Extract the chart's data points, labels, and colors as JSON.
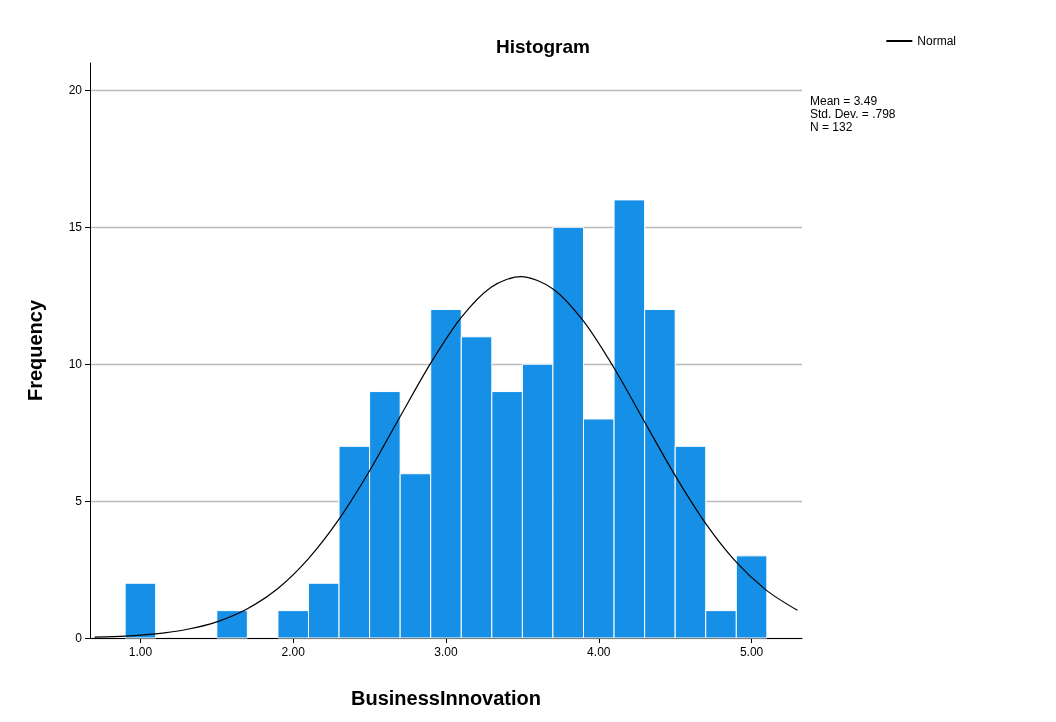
{
  "chart_data": {
    "type": "histogram",
    "title": "Histogram",
    "xlabel": "BusinessInnovation",
    "ylabel": "Frequency",
    "bins": [
      0.9,
      1.1,
      1.3,
      1.5,
      1.7,
      1.9,
      2.1,
      2.3,
      2.5,
      2.7,
      2.9,
      3.1,
      3.3,
      3.5,
      3.7,
      3.9,
      4.1,
      4.3,
      4.5,
      4.7,
      4.9,
      5.1
    ],
    "series": [
      {
        "color": "#1690e6",
        "values": [
          2,
          0,
          0,
          1,
          0,
          1,
          2,
          7,
          9,
          6,
          12,
          11,
          9,
          10,
          15,
          8,
          16,
          12,
          7,
          1,
          3
        ]
      },
      {
        "type": "line",
        "name": "Normal",
        "color": "#000000",
        "x": [
          0.7,
          0.9,
          1.1,
          1.3,
          1.5,
          1.7,
          1.9,
          2.1,
          2.3,
          2.5,
          2.7,
          2.9,
          3.1,
          3.3,
          3.49,
          3.7,
          3.9,
          4.1,
          4.3,
          4.5,
          4.7,
          4.9,
          5.1,
          5.3
        ],
        "values": [
          0.03,
          0.07,
          0.15,
          0.31,
          0.59,
          1.07,
          1.81,
          2.9,
          4.34,
          6.11,
          8.09,
          10.04,
          11.71,
          12.83,
          13.2,
          12.75,
          11.57,
          9.86,
          7.89,
          5.93,
          4.18,
          2.77,
          1.73,
          1.01
        ]
      }
    ],
    "xlim": [
      0.67,
      5.33
    ],
    "xticks": [
      {
        "value": 1,
        "label": "1.00"
      },
      {
        "value": 2,
        "label": "2.00"
      },
      {
        "value": 3,
        "label": "3.00"
      },
      {
        "value": 4,
        "label": "4.00"
      },
      {
        "value": 5,
        "label": "5.00"
      }
    ],
    "ylim": [
      0,
      21
    ],
    "yticks": [
      0,
      5,
      10,
      15,
      20
    ],
    "grid": "y",
    "legend": "top right",
    "marker": "none",
    "annotations": [
      "Mean = 3.49",
      "Std. Dev. = .798",
      "N = 132"
    ]
  }
}
